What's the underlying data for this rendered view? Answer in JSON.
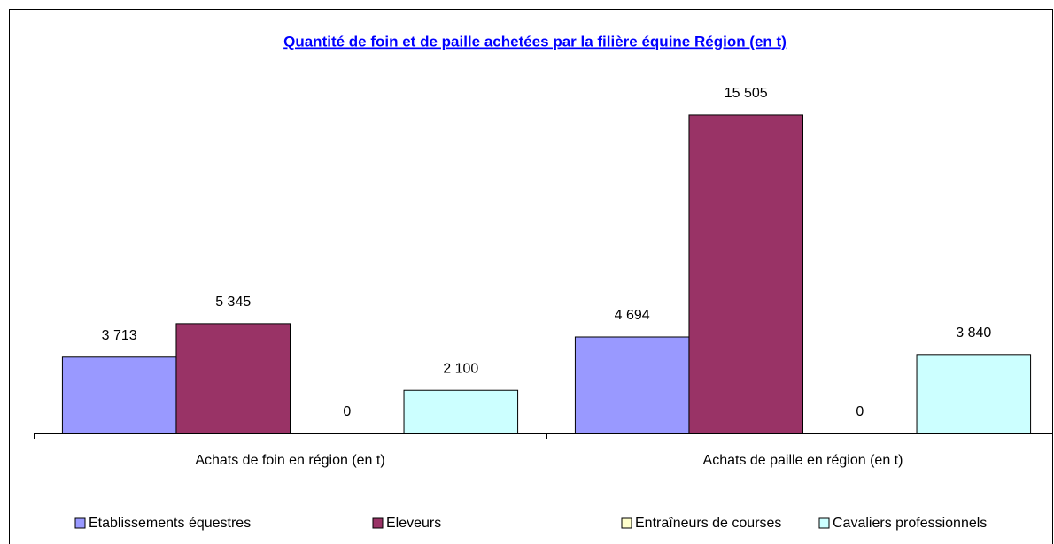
{
  "chart_data": {
    "type": "bar",
    "title": "Quantité de foin et de paille achetées par la filière équine Région (en t)",
    "categories": [
      "Achats de foin en région (en t)",
      "Achats de paille en région (en t)"
    ],
    "series": [
      {
        "name": "Etablissements équestres",
        "color": "#9999ff",
        "values": [
          3713,
          4694
        ],
        "value_labels": [
          "3 713",
          "4 694"
        ]
      },
      {
        "name": "Eleveurs",
        "color": "#993366",
        "values": [
          5345,
          15505
        ],
        "value_labels": [
          "5 345",
          "15 505"
        ]
      },
      {
        "name": "Entraîneurs de courses",
        "color": "#ffffcc",
        "values": [
          0,
          0
        ],
        "value_labels": [
          "0",
          "0"
        ]
      },
      {
        "name": "Cavaliers professionnels",
        "color": "#ccffff",
        "values": [
          2100,
          3840
        ],
        "value_labels": [
          "2 100",
          "3 840"
        ]
      }
    ],
    "ylim": [
      0,
      18000
    ],
    "legend": "bottom"
  }
}
